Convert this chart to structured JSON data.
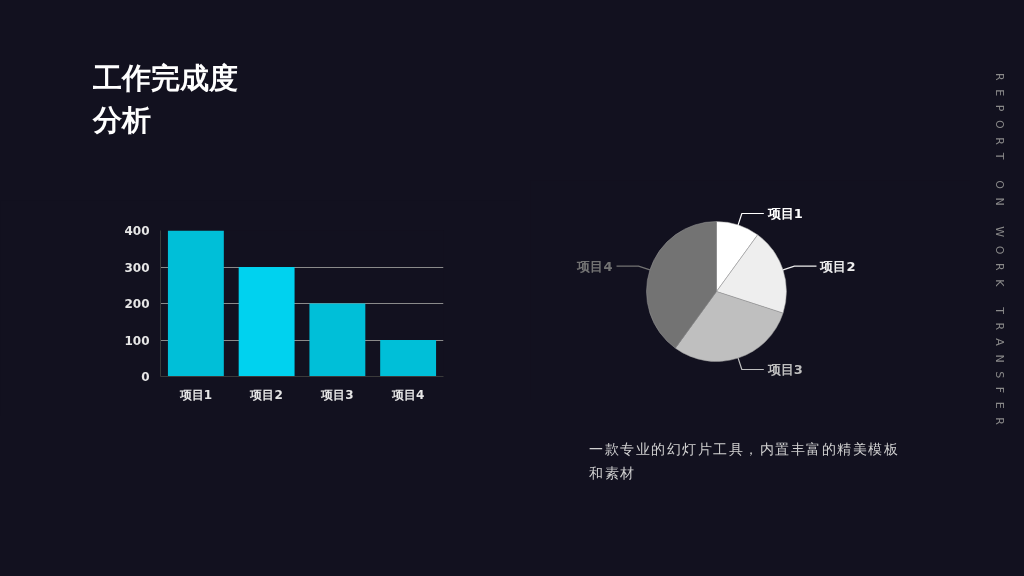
{
  "chart_data": [
    {
      "type": "bar",
      "title": "工作完成度分析",
      "categories": [
        "项目1",
        "项目2",
        "项目3",
        "项目4"
      ],
      "values": [
        400,
        300,
        200,
        100
      ],
      "colors": [
        "#00bfd8",
        "#00d2ef",
        "#00bfd8",
        "#00bfd8"
      ],
      "ylim": [
        0,
        400
      ],
      "yticks": [
        0,
        100,
        200,
        300,
        400
      ],
      "grid": "y"
    },
    {
      "type": "pie",
      "categories": [
        "项目1",
        "项目2",
        "项目3",
        "项目4"
      ],
      "values": [
        10,
        20,
        30,
        40
      ],
      "colors": [
        "#ffffff",
        "#eeeeee",
        "#bfbfbf",
        "#737373"
      ],
      "annotations": [
        "一款专业的幻灯片工具，内置丰富的精美模板和素材",
        "REPORT ON WORK TRANSFER"
      ]
    }
  ]
}
